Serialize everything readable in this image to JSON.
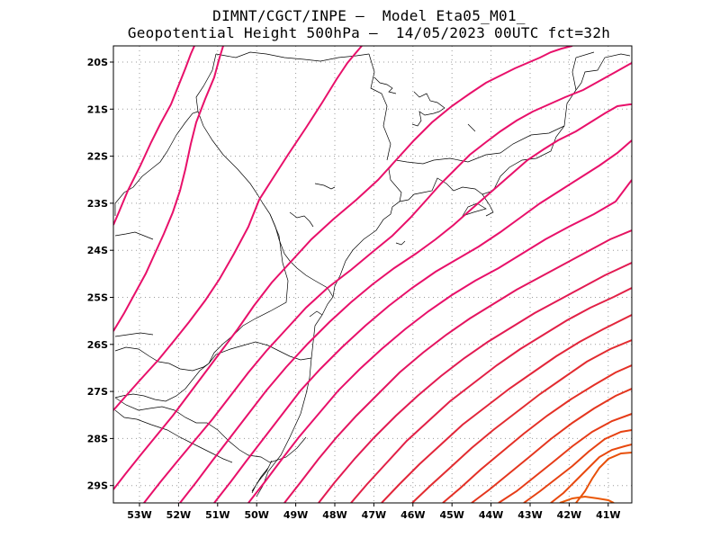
{
  "header": {
    "line1": "DIMNT/CGCT/INPE –  Model Eta05_M01_",
    "line2": "Geopotential Height 500hPa –  14/05/2023 00UTC fct=32h"
  },
  "axes": {
    "lat_labels": [
      "20S",
      "21S",
      "22S",
      "23S",
      "24S",
      "25S",
      "26S",
      "27S",
      "28S",
      "29S"
    ],
    "lon_labels": [
      "53W",
      "52W",
      "51W",
      "50W",
      "49W",
      "48W",
      "47W",
      "46W",
      "45W",
      "44W",
      "43W",
      "42W",
      "41W"
    ]
  },
  "colors": {
    "frame": "#000000",
    "grid": "#9a9a9a",
    "coast": "#000000",
    "contour_cool": "#e8106a",
    "contour_warm": "#e8500a"
  }
}
